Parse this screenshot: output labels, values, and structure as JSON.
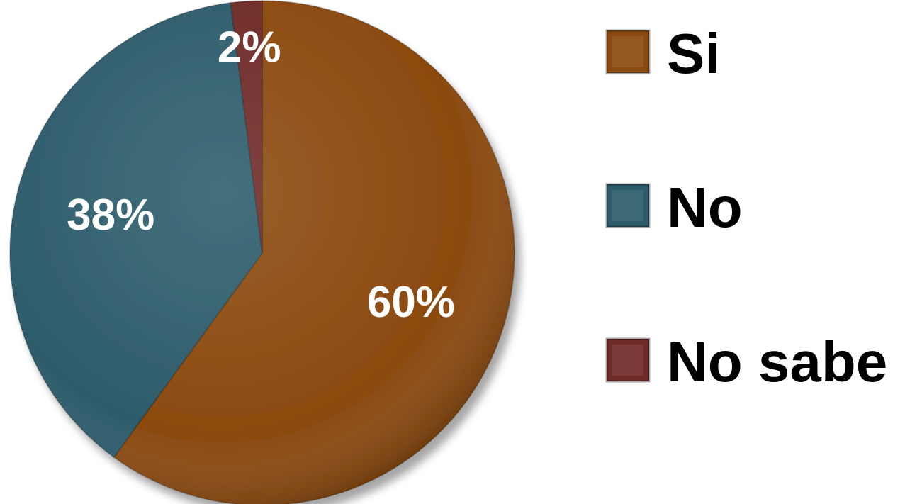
{
  "chart_data": {
    "type": "pie",
    "title": "",
    "categories": [
      "Si",
      "No",
      "No sabe"
    ],
    "values": [
      60,
      38,
      2
    ],
    "data_labels": [
      "60%",
      "38%",
      "2%"
    ],
    "colors": [
      "#8b4a0f",
      "#2d5c6b",
      "#6e2a27"
    ],
    "legend": {
      "position": "right",
      "entries": [
        "Si",
        "No",
        "No sabe"
      ]
    },
    "start_angle_deg": 0,
    "direction": "clockwise",
    "style": "3d-bevel"
  }
}
